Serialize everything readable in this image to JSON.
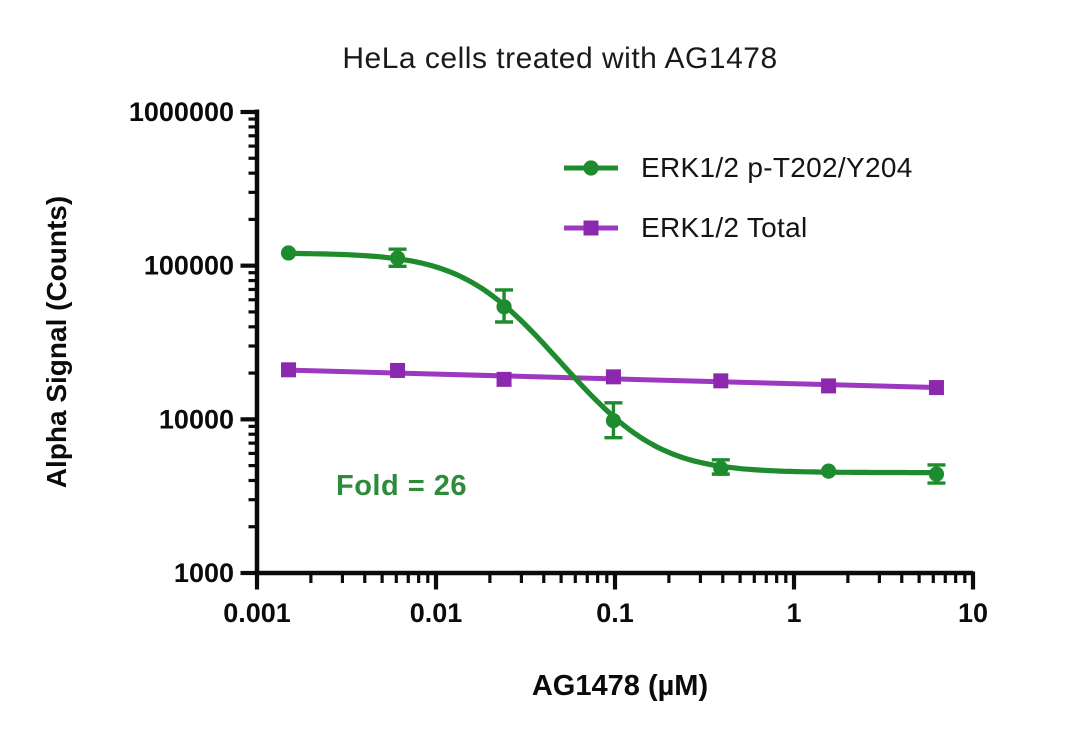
{
  "chart_data": {
    "type": "line",
    "title": "HeLa cells treated with AG1478",
    "xlabel": "AG1478 (µM)",
    "ylabel": "Alpha Signal (Counts)",
    "x_scale": "log",
    "y_scale": "log",
    "xlim": [
      0.001,
      10
    ],
    "ylim": [
      1000,
      1000000
    ],
    "grid": false,
    "legend_position": "top-right-inside",
    "x_ticks": [
      {
        "value": 0.001,
        "label": "0.001"
      },
      {
        "value": 0.01,
        "label": "0.01"
      },
      {
        "value": 0.1,
        "label": "0.1"
      },
      {
        "value": 1,
        "label": "1"
      },
      {
        "value": 10,
        "label": "10"
      }
    ],
    "y_ticks": [
      {
        "value": 1000000,
        "label": "1000000"
      },
      {
        "value": 100000,
        "label": "100000"
      },
      {
        "value": 10000,
        "label": "10000"
      },
      {
        "value": 1000,
        "label": "1000"
      }
    ],
    "x": [
      0.0015,
      0.0061,
      0.024,
      0.098,
      0.39,
      1.56,
      6.25
    ],
    "series": [
      {
        "name": "ERK1/2 p-T202/Y204",
        "marker": "circle",
        "color": "#1e8b2e",
        "values": [
          121000,
          112000,
          54000,
          9800,
          4800,
          4600,
          4400
        ],
        "err_lo": [
          null,
          99000,
          43000,
          7600,
          4400,
          null,
          3850
        ],
        "err_hi": [
          null,
          128000,
          69500,
          12800,
          5450,
          null,
          5050
        ],
        "fit": {
          "model": "4PL",
          "top": 121000,
          "bottom": 4500,
          "ec50": 0.021,
          "hill": 1.9
        }
      },
      {
        "name": "ERK1/2 Total",
        "marker": "square",
        "color": "#8b28ae",
        "line_color": "#9c39c0",
        "values": [
          21000,
          20800,
          18200,
          18900,
          17800,
          16500,
          16100
        ],
        "err_lo": [
          null,
          null,
          null,
          null,
          null,
          null,
          null
        ],
        "err_hi": [
          null,
          null,
          null,
          null,
          null,
          null,
          null
        ],
        "fit": {
          "model": "loglinear",
          "y_first": 20900,
          "y_last": 16100
        }
      }
    ],
    "annotation": {
      "text": "Fold = 26",
      "color": "#2e8b3a"
    }
  }
}
